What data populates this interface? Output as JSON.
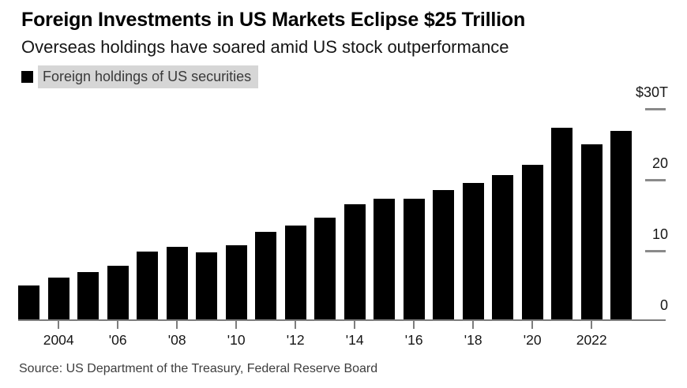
{
  "header": {
    "title": "Foreign Investments in US Markets Eclipse $25 Trillion",
    "subtitle": "Overseas holdings have soared amid US stock outperformance"
  },
  "legend": {
    "marker": "black-square",
    "label": "Foreign holdings of US securities",
    "highlight_color": "#d6d6d6"
  },
  "chart_data": {
    "type": "bar",
    "title": "Foreign Investments in US Markets Eclipse $25 Trillion",
    "series_name": "Foreign holdings of US securities",
    "unit": "trillion USD",
    "x": [
      2003,
      2004,
      2005,
      2006,
      2007,
      2008,
      2009,
      2010,
      2011,
      2012,
      2013,
      2014,
      2015,
      2016,
      2017,
      2018,
      2019,
      2020,
      2021,
      2022,
      2023
    ],
    "values": [
      4.9,
      6.0,
      6.8,
      7.7,
      9.7,
      10.3,
      9.6,
      10.6,
      12.4,
      13.3,
      14.4,
      16.3,
      17.1,
      17.1,
      18.3,
      19.3,
      20.4,
      21.9,
      27.1,
      24.8,
      26.7
    ],
    "ylim": [
      0,
      30
    ],
    "y_ticks": [
      {
        "value": 0,
        "label": "0"
      },
      {
        "value": 10,
        "label": "10"
      },
      {
        "value": 20,
        "label": "20"
      },
      {
        "value": 30,
        "label": "$30T"
      }
    ],
    "x_ticks": [
      {
        "year": 2004,
        "label": "2004"
      },
      {
        "year": 2006,
        "label": "'06"
      },
      {
        "year": 2008,
        "label": "'08"
      },
      {
        "year": 2010,
        "label": "'10"
      },
      {
        "year": 2012,
        "label": "'12"
      },
      {
        "year": 2014,
        "label": "'14"
      },
      {
        "year": 2016,
        "label": "'16"
      },
      {
        "year": 2018,
        "label": "'18"
      },
      {
        "year": 2020,
        "label": "'20"
      },
      {
        "year": 2022,
        "label": "2022"
      }
    ],
    "grid": false,
    "legend_position": "top-left",
    "bar_color": "#000000",
    "axis_color": "#7d7d7d",
    "y_axis_side": "right"
  },
  "source": "Source: US Department of the Treasury, Federal Reserve Board"
}
